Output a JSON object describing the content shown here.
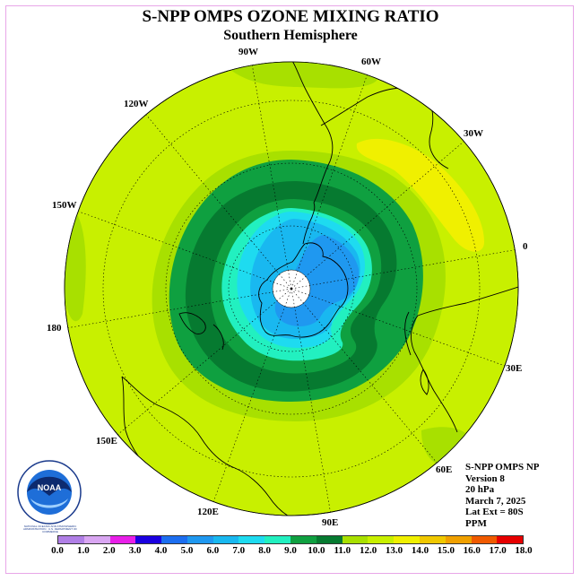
{
  "title": "S-NPP OMPS OZONE MIXING RATIO",
  "subtitle": "Southern Hemisphere",
  "longitude_labels": [
    "90W",
    "60W",
    "30W",
    "0",
    "30E",
    "60E",
    "90E",
    "120E",
    "150E",
    "180",
    "150W",
    "120W"
  ],
  "info": {
    "line1": "S-NPP OMPS NP",
    "line2": "Version 8",
    "line3": "20 hPa",
    "line4": "March 7, 2025",
    "line5": "Lat Ext = 80S",
    "line6": "PPM"
  },
  "colorbar": {
    "ticks": [
      "0.0",
      "1.0",
      "2.0",
      "3.0",
      "4.0",
      "5.0",
      "6.0",
      "7.0",
      "8.0",
      "9.0",
      "10.0",
      "11.0",
      "12.0",
      "13.0",
      "14.0",
      "15.0",
      "16.0",
      "17.0",
      "18.0"
    ],
    "colors": [
      "#b07fe6",
      "#d9a6f2",
      "#e81fe8",
      "#1a00e0",
      "#1c6ef0",
      "#1f98f0",
      "#19b8f0",
      "#1edbf0",
      "#22f0c0",
      "#0fa040",
      "#067a30",
      "#a8e000",
      "#c8f000",
      "#f0f000",
      "#f0c800",
      "#f0a000",
      "#f05a00",
      "#e60000",
      "#8c5a3c"
    ]
  },
  "map_colors": {
    "background_field": "#c8f000",
    "ring_mid": "#a8e000",
    "dark_green": "#067a30",
    "green": "#0fa040",
    "aqua": "#22f0c0",
    "cyan": "#1edbf0",
    "light_blue": "#19b8f0",
    "blue": "#1f98f0",
    "yellow": "#f0f000",
    "pole_hole": "#ffffff"
  },
  "logo": {
    "text": "NOAA",
    "ring_text": "NATIONAL OCEANIC AND ATMOSPHERIC ADMINISTRATION · U.S. DEPARTMENT OF COMMERCE"
  }
}
